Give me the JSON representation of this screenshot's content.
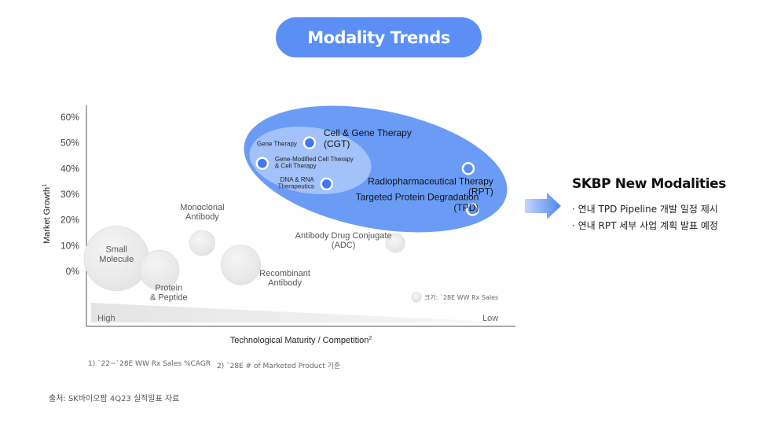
{
  "header": {
    "title": "Modality Trends"
  },
  "chart_data": {
    "type": "scatter",
    "ylabel": "Market Growth",
    "ylabel_sup": "1",
    "xlabel": "Technological Maturity / Competition",
    "xlabel_sup": "2",
    "y_ticks": [
      "60%",
      "50%",
      "40%",
      "30%",
      "20%",
      "10%",
      "0%"
    ],
    "ylim": [
      0,
      60
    ],
    "x_axis_ends": {
      "left": "High",
      "right": "Low"
    },
    "size_legend": "크기: `28E WW Rx Sales",
    "groups": [
      {
        "name": "Cell & Gene Therapy\n(CGT)",
        "color": "#5b8ff5",
        "kind": "ellipse-outer"
      },
      {
        "name": "",
        "color": "#9fc0f7",
        "kind": "ellipse-inner"
      }
    ],
    "points": [
      {
        "label": "Small\nMolecule",
        "x": 0.07,
        "y": 5,
        "size": "large",
        "style": "gray"
      },
      {
        "label": "Protein\n& Peptide",
        "x": 0.17,
        "y": 0.5,
        "size": "medium",
        "style": "gray"
      },
      {
        "label": "Monoclonal\nAntibody",
        "x": 0.27,
        "y": 11,
        "size": "small",
        "style": "gray"
      },
      {
        "label": "Recombinant\nAntibody",
        "x": 0.36,
        "y": 2.5,
        "size": "medium",
        "style": "gray"
      },
      {
        "label": "Antibody Drug Conjugate\n(ADC)",
        "x": 0.72,
        "y": 11,
        "size": "tiny",
        "style": "gray"
      },
      {
        "label": "Gene Therapy",
        "x": 0.52,
        "y": 50,
        "size": "dot",
        "style": "blue"
      },
      {
        "label": "Gene-Modified Cell Therapy\n& Cell Therapy",
        "x": 0.41,
        "y": 42,
        "size": "dot",
        "style": "blue"
      },
      {
        "label": "DNA & RNA\nTherapeutics",
        "x": 0.56,
        "y": 34,
        "size": "dot",
        "style": "blue"
      },
      {
        "label": "Radiopharmaceutical Therapy\n(RPT)",
        "x": 0.89,
        "y": 40,
        "size": "dot",
        "style": "blue-outline"
      },
      {
        "label": "Targeted Protein Degradation\n(TPD)",
        "x": 0.9,
        "y": 24,
        "size": "dot",
        "style": "blue-outline"
      }
    ]
  },
  "side": {
    "title": "SKBP New Modalities",
    "bullets": [
      "· 연내 TPD Pipeline 개발 일정 제시",
      "· 연내 RPT 세부 사업 계획 발표 예정"
    ]
  },
  "footnotes": [
    "1) `22~`28E WW Rx Sales %CAGR",
    "2) `28E # of Marketed Product 기준"
  ],
  "source": "출처: SK바이오팜 4Q23 실적발표 자료"
}
